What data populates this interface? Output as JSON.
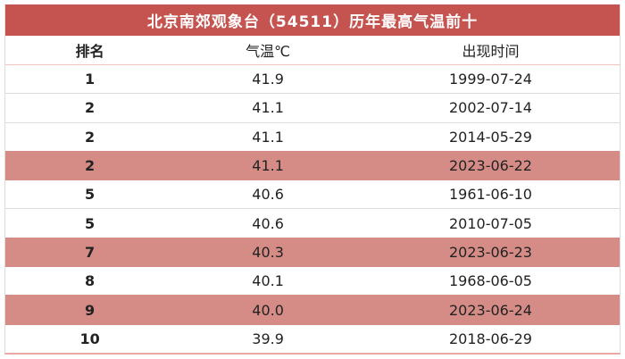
{
  "page": {
    "title_bar": "北京南郊观象台（54511）历年最高气温前十"
  },
  "table": {
    "columns": {
      "rank": "排名",
      "temp": "气温℃",
      "date": "出现时间"
    },
    "rows": [
      {
        "rank": "1",
        "temp": "41.9",
        "date": "1999-07-24",
        "highlight": false
      },
      {
        "rank": "2",
        "temp": "41.1",
        "date": "2002-07-14",
        "highlight": false
      },
      {
        "rank": "2",
        "temp": "41.1",
        "date": "2014-05-29",
        "highlight": false
      },
      {
        "rank": "2",
        "temp": "41.1",
        "date": "2023-06-22",
        "highlight": true
      },
      {
        "rank": "5",
        "temp": "40.6",
        "date": "1961-06-10",
        "highlight": false
      },
      {
        "rank": "5",
        "temp": "40.6",
        "date": "2010-07-05",
        "highlight": false
      },
      {
        "rank": "7",
        "temp": "40.3",
        "date": "2023-06-23",
        "highlight": true
      },
      {
        "rank": "8",
        "temp": "40.1",
        "date": "1968-06-05",
        "highlight": false
      },
      {
        "rank": "9",
        "temp": "40.0",
        "date": "2023-06-24",
        "highlight": true
      },
      {
        "rank": "10",
        "temp": "39.9",
        "date": "2018-06-29",
        "highlight": false
      }
    ]
  },
  "colors": {
    "header-red": "#c5534f",
    "highlight-pink": "#d58c86",
    "row-separator": "#dcdcdc",
    "outer-border": "#e2d9d8",
    "bottom-border": "#eba9a3",
    "header-underline": "#f3c3be",
    "text": "#222222"
  },
  "chart_data": {
    "type": "table",
    "title": "北京南郊观象台（54511）历年最高气温前十",
    "columns": [
      "排名",
      "气温℃",
      "出现时间"
    ],
    "rows": [
      [
        "1",
        "41.9",
        "1999-07-24"
      ],
      [
        "2",
        "41.1",
        "2002-07-14"
      ],
      [
        "2",
        "41.1",
        "2014-05-29"
      ],
      [
        "2",
        "41.1",
        "2023-06-22"
      ],
      [
        "5",
        "40.6",
        "1961-06-10"
      ],
      [
        "5",
        "40.6",
        "2010-07-05"
      ],
      [
        "7",
        "40.3",
        "2023-06-23"
      ],
      [
        "8",
        "40.1",
        "1968-06-05"
      ],
      [
        "9",
        "40.0",
        "2023-06-24"
      ],
      [
        "10",
        "39.9",
        "2018-06-29"
      ]
    ],
    "highlighted_row_indices": [
      3,
      6,
      8
    ],
    "notes_layout": "red title band on top, three centered columns, highlighted rows in salmon pink"
  }
}
